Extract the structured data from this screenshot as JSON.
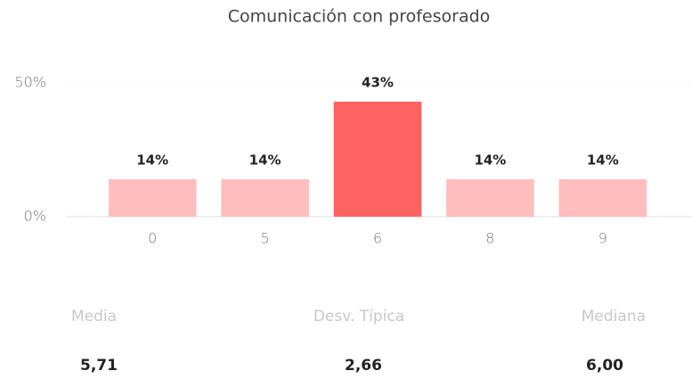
{
  "chart_data": {
    "type": "bar",
    "title": "Comunicación con profesorado",
    "categories": [
      "0",
      "5",
      "6",
      "8",
      "9"
    ],
    "values": [
      14,
      14,
      43,
      14,
      14
    ],
    "value_labels": [
      "14%",
      "14%",
      "43%",
      "14%",
      "14%"
    ],
    "colors": [
      "#ffbdbd",
      "#ffbdbd",
      "#fe6361",
      "#ffbdbd",
      "#ffbdbd"
    ],
    "ylim": [
      0,
      50
    ],
    "yticks": [
      {
        "value": 0,
        "label": "0%"
      },
      {
        "value": 50,
        "label": "50%"
      }
    ],
    "grid": true
  },
  "stats": [
    {
      "label": "Media",
      "value": "5,71"
    },
    {
      "label": "Desv. Típica",
      "value": "2,66"
    },
    {
      "label": "Mediana",
      "value": "6,00"
    }
  ]
}
